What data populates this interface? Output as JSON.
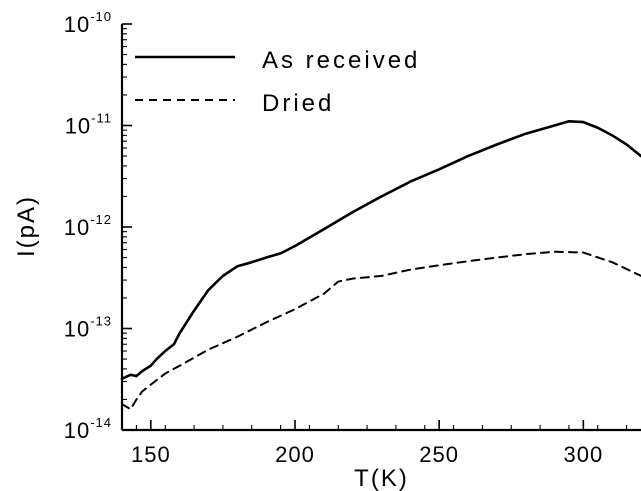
{
  "chart_data": {
    "type": "line",
    "xlabel": "T(K)",
    "ylabel": "I(pA)",
    "xlim": [
      140,
      320
    ],
    "ylim": [
      1e-14,
      1e-10
    ],
    "y_scale": "log",
    "grid": false,
    "legend_position": "top-left",
    "x_ticks": [
      150,
      200,
      250,
      300
    ],
    "x_tick_labels": [
      "150",
      "200",
      "250",
      "300"
    ],
    "y_ticks": [
      1e-14,
      1e-13,
      1e-12,
      1e-11,
      1e-10
    ],
    "y_tick_labels": [
      {
        "base": "10",
        "exp": "-14"
      },
      {
        "base": "10",
        "exp": "-13"
      },
      {
        "base": "10",
        "exp": "-12"
      },
      {
        "base": "10",
        "exp": "-11"
      },
      {
        "base": "10",
        "exp": "-10"
      }
    ],
    "series": [
      {
        "name": "As received",
        "style": "solid",
        "color": "#000000",
        "x": [
          140,
          143,
          145,
          147,
          150,
          152,
          155,
          158,
          160,
          165,
          170,
          175,
          180,
          185,
          190,
          195,
          200,
          210,
          220,
          230,
          240,
          250,
          260,
          270,
          280,
          290,
          295,
          300,
          305,
          310,
          315,
          320
        ],
        "y": [
          3.2e-14,
          3.5e-14,
          3.4e-14,
          3.8e-14,
          4.3e-14,
          5e-14,
          6e-14,
          7e-14,
          9e-14,
          1.5e-13,
          2.4e-13,
          3.3e-13,
          4.1e-13,
          4.5e-13,
          5e-13,
          5.5e-13,
          6.5e-13,
          9.5e-13,
          1.4e-12,
          2e-12,
          2.8e-12,
          3.7e-12,
          5e-12,
          6.5e-12,
          8.3e-12,
          1e-11,
          1.1e-11,
          1.08e-11,
          9.5e-12,
          8e-12,
          6.5e-12,
          5e-12
        ]
      },
      {
        "name": "Dried",
        "style": "dashed",
        "color": "#000000",
        "x": [
          140,
          143,
          145,
          147,
          150,
          155,
          160,
          170,
          180,
          190,
          200,
          210,
          215,
          220,
          230,
          240,
          250,
          260,
          270,
          280,
          290,
          300,
          310,
          320
        ],
        "y": [
          1.8e-14,
          1.6e-14,
          2e-14,
          2.4e-14,
          2.8e-14,
          3.6e-14,
          4.3e-14,
          6.2e-14,
          8.3e-14,
          1.15e-13,
          1.55e-13,
          2.2e-13,
          2.9e-13,
          3.1e-13,
          3.3e-13,
          3.8e-13,
          4.2e-13,
          4.6e-13,
          5e-13,
          5.4e-13,
          5.7e-13,
          5.6e-13,
          4.5e-13,
          3.3e-13
        ]
      }
    ]
  }
}
